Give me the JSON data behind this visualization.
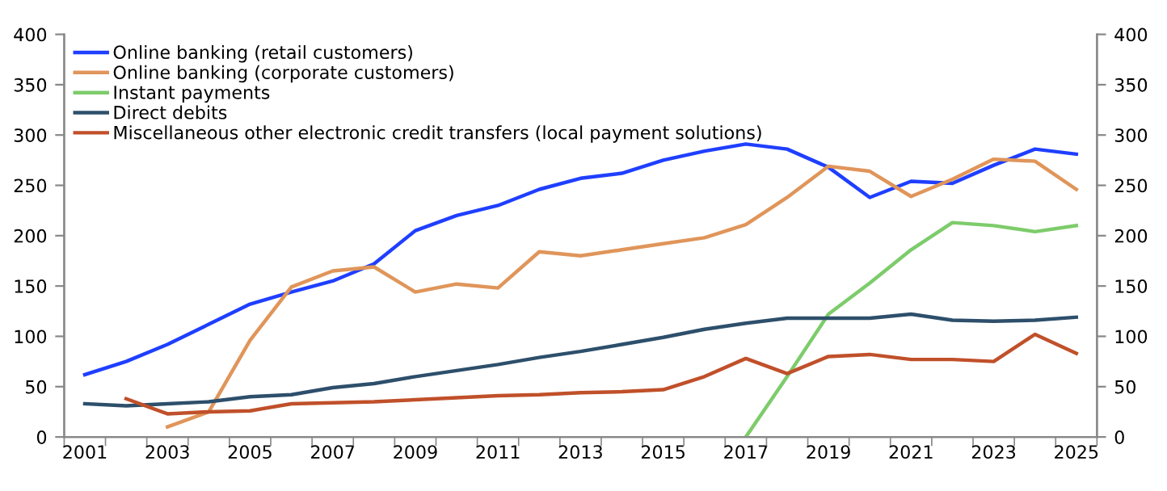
{
  "chart_data": {
    "type": "line",
    "categories": [
      "2001",
      null,
      "2003",
      null,
      "2005",
      null,
      "2007",
      null,
      "2009",
      null,
      "2011",
      null,
      "2013",
      null,
      "2015",
      null,
      "2017",
      null,
      "2019",
      null,
      "2021",
      null,
      "2023",
      null,
      "2025"
    ],
    "series": [
      {
        "name": "Online banking (retail customers)",
        "color": "#1f3fff",
        "values": [
          62,
          75,
          92,
          112,
          132,
          144,
          155,
          172,
          205,
          220,
          230,
          246,
          257,
          262,
          275,
          284,
          291,
          286,
          268,
          238,
          254,
          252,
          270,
          286,
          281
        ]
      },
      {
        "name": "Online banking (corporate customers)",
        "color": "#e0955a",
        "values": [
          null,
          null,
          10,
          25,
          96,
          149,
          165,
          169,
          144,
          152,
          148,
          184,
          180,
          186,
          192,
          198,
          211,
          238,
          269,
          264,
          239,
          256,
          276,
          274,
          246
        ]
      },
      {
        "name": "Instant payments",
        "color": "#7dcc6b",
        "values": [
          null,
          null,
          null,
          null,
          null,
          null,
          null,
          null,
          null,
          null,
          null,
          null,
          null,
          null,
          null,
          null,
          0,
          60,
          122,
          153,
          186,
          213,
          210,
          204,
          210
        ]
      },
      {
        "name": "Direct debits",
        "color": "#2d4f6b",
        "values": [
          33,
          31,
          33,
          35,
          40,
          42,
          49,
          53,
          60,
          66,
          72,
          79,
          85,
          92,
          99,
          107,
          113,
          118,
          118,
          118,
          122,
          116,
          115,
          116,
          119
        ]
      },
      {
        "name": "Miscellaneous other electronic credit transfers (local payment solutions)",
        "color": "#c0502a",
        "values": [
          null,
          38,
          23,
          25,
          26,
          33,
          34,
          35,
          37,
          39,
          41,
          42,
          44,
          45,
          47,
          60,
          78,
          63,
          80,
          82,
          77,
          77,
          75,
          102,
          83
        ]
      }
    ],
    "ylim": [
      0,
      400
    ],
    "yticks": [
      0,
      50,
      100,
      150,
      200,
      250,
      300,
      350,
      400
    ],
    "y2lim": [
      0,
      400
    ],
    "y2ticks": [
      0,
      50,
      100,
      150,
      200,
      250,
      300,
      350,
      400
    ],
    "grid": false,
    "legend": "top left",
    "marker": "none",
    "line_style": "solid"
  }
}
